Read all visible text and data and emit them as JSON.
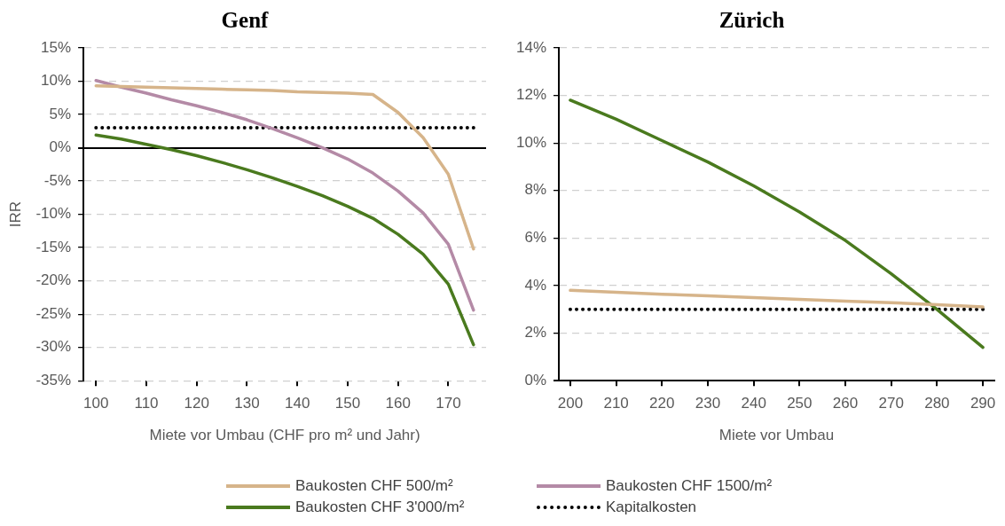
{
  "chart_data": [
    {
      "type": "line",
      "title": "Genf",
      "xlabel": "Miete vor Umbau (CHF pro m² und Jahr)",
      "ylabel": "IRR",
      "x": [
        100,
        105,
        110,
        115,
        120,
        125,
        130,
        135,
        140,
        145,
        150,
        155,
        160,
        165,
        170,
        175
      ],
      "xlim": [
        97.5,
        177.5
      ],
      "xticks": [
        100,
        110,
        120,
        130,
        140,
        150,
        160,
        170
      ],
      "ylim": [
        -35,
        15
      ],
      "yticks": [
        {
          "value": -35,
          "label": "-35%"
        },
        {
          "value": -30,
          "label": "-30%"
        },
        {
          "value": -25,
          "label": "-25%"
        },
        {
          "value": -20,
          "label": "-20%"
        },
        {
          "value": -15,
          "label": "-15%"
        },
        {
          "value": -10,
          "label": "-10%"
        },
        {
          "value": -5,
          "label": "-5%"
        },
        {
          "value": 0,
          "label": "0%"
        },
        {
          "value": 5,
          "label": "5%"
        },
        {
          "value": 10,
          "label": "10%"
        },
        {
          "value": 15,
          "label": "15%"
        }
      ],
      "grid": "y",
      "legend": "bottom",
      "marker": "none",
      "series": [
        {
          "name": "Baukosten CHF 500/m²",
          "color": "#d6b48a",
          "values": [
            9.3,
            9.2,
            9.1,
            9.0,
            8.9,
            8.8,
            8.7,
            8.6,
            8.4,
            8.3,
            8.2,
            8.0,
            5.3,
            1.5,
            -4,
            -15.2
          ]
        },
        {
          "name": "Baukosten CHF 1500/m²",
          "color": "#b48aa6",
          "values": [
            10.1,
            9.1,
            8.2,
            7.2,
            6.3,
            5.3,
            4.2,
            2.9,
            1.5,
            0,
            -1.7,
            -3.8,
            -6.5,
            -9.8,
            -14.5,
            -24.4
          ]
        },
        {
          "name": "Baukosten CHF 3'000/m²",
          "color": "#4a7a1e",
          "values": [
            1.9,
            1.3,
            0.5,
            -0.3,
            -1.2,
            -2.2,
            -3.3,
            -4.5,
            -5.8,
            -7.2,
            -8.8,
            -10.6,
            -13.0,
            -16.0,
            -20.5,
            -29.6
          ]
        },
        {
          "name": "Kapitalkosten",
          "color": "#000000",
          "line_style": "dotted",
          "values": [
            3,
            3,
            3,
            3,
            3,
            3,
            3,
            3,
            3,
            3,
            3,
            3,
            3,
            3,
            3,
            3
          ]
        }
      ]
    },
    {
      "type": "line",
      "title": "Zürich",
      "xlabel": "Miete vor Umbau",
      "x": [
        200,
        210,
        220,
        230,
        240,
        250,
        260,
        270,
        280,
        290
      ],
      "xlim": [
        197.5,
        292.5
      ],
      "xticks": [
        200,
        210,
        220,
        230,
        240,
        250,
        260,
        270,
        280,
        290
      ],
      "ylim": [
        0,
        14
      ],
      "yticks": [
        {
          "value": 0,
          "label": "0%"
        },
        {
          "value": 2,
          "label": "2%"
        },
        {
          "value": 4,
          "label": "4%"
        },
        {
          "value": 6,
          "label": "6%"
        },
        {
          "value": 8,
          "label": "8%"
        },
        {
          "value": 10,
          "label": "10%"
        },
        {
          "value": 12,
          "label": "12%"
        },
        {
          "value": 14,
          "label": "14%"
        }
      ],
      "grid": "y",
      "legend": "bottom",
      "marker": "none",
      "series": [
        {
          "name": "Baukosten CHF 500/m²",
          "color": "#d6b48a",
          "values": [
            3.8,
            3.72,
            3.64,
            3.57,
            3.5,
            3.42,
            3.35,
            3.28,
            3.2,
            3.1
          ]
        },
        {
          "name": "Baukosten CHF 3'000/m²",
          "color": "#4a7a1e",
          "values": [
            11.8,
            11.0,
            10.1,
            9.2,
            8.2,
            7.1,
            5.9,
            4.5,
            3.0,
            1.4
          ]
        },
        {
          "name": "Kapitalkosten",
          "color": "#000000",
          "line_style": "dotted",
          "values": [
            3,
            3,
            3,
            3,
            3,
            3,
            3,
            3,
            3,
            3
          ]
        }
      ]
    }
  ]
}
